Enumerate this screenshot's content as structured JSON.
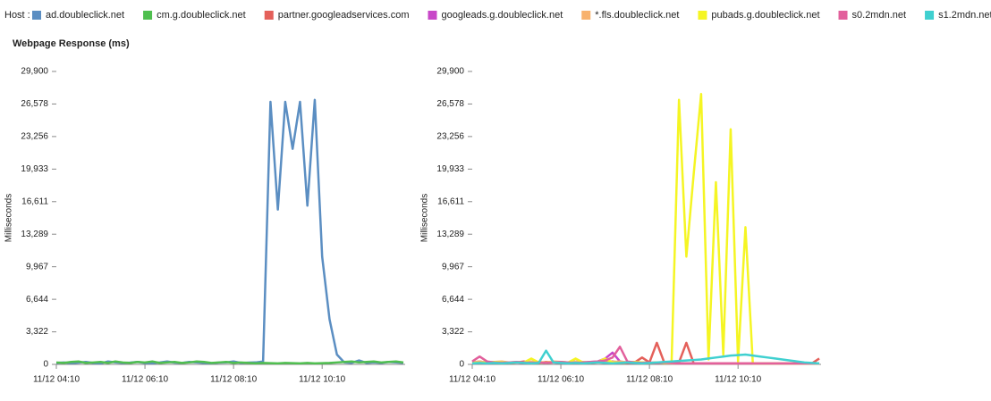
{
  "legend_title": "Host :",
  "chart_data": [
    {
      "type": "line",
      "title": "Webpage Response (ms)",
      "ylabel": "Milliseconds",
      "x": [
        "11/12 04:10",
        "11/12 04:20",
        "11/12 04:30",
        "11/12 04:40",
        "11/12 04:50",
        "11/12 05:00",
        "11/12 05:10",
        "11/12 05:20",
        "11/12 05:30",
        "11/12 05:40",
        "11/12 05:50",
        "11/12 06:00",
        "11/12 06:10",
        "11/12 06:20",
        "11/12 06:30",
        "11/12 06:40",
        "11/12 06:50",
        "11/12 07:00",
        "11/12 07:10",
        "11/12 07:20",
        "11/12 07:30",
        "11/12 07:40",
        "11/12 07:50",
        "11/12 08:00",
        "11/12 08:10",
        "11/12 08:20",
        "11/12 08:30",
        "11/12 08:40",
        "11/12 08:50",
        "11/12 09:00",
        "11/12 09:10",
        "11/12 09:20",
        "11/12 09:30",
        "11/12 09:40",
        "11/12 09:50",
        "11/12 10:00",
        "11/12 10:10",
        "11/12 10:20",
        "11/12 10:30",
        "11/12 10:40",
        "11/12 10:50",
        "11/12 11:00",
        "11/12 11:10",
        "11/12 11:20",
        "11/12 11:30",
        "11/12 11:40",
        "11/12 11:50",
        "11/12 12:00"
      ],
      "xlim": [
        "11/12 04:10",
        "11/12 12:00"
      ],
      "xticks": [
        "11/12 04:10",
        "11/12 06:10",
        "11/12 08:10",
        "11/12 10:10"
      ],
      "ylim": [
        0,
        29900
      ],
      "yticks": [
        0,
        {
          "value": 3322,
          "label": "3,322"
        },
        {
          "value": 6644,
          "label": "6,644"
        },
        {
          "value": 9967,
          "label": "9,967"
        },
        {
          "value": 13289,
          "label": "13,289"
        },
        {
          "value": 16611,
          "label": "16,611"
        },
        {
          "value": 19933,
          "label": "19,933"
        },
        {
          "value": 23256,
          "label": "23,256"
        },
        {
          "value": 26578,
          "label": "26,578"
        },
        {
          "value": 29900,
          "label": "29,900"
        }
      ],
      "grid": false,
      "series": [
        {
          "name": "ad.doubleclick.net",
          "color": "#5b8ec2",
          "values": [
            150,
            200,
            120,
            180,
            250,
            150,
            100,
            300,
            200,
            150,
            180,
            250,
            150,
            120,
            200,
            300,
            180,
            150,
            250,
            200,
            150,
            120,
            180,
            200,
            300,
            150,
            180,
            200,
            300,
            26800,
            15800,
            26800,
            22000,
            26800,
            16200,
            27000,
            11000,
            4600,
            1000,
            200,
            150,
            400,
            150,
            200,
            150,
            250,
            200,
            150
          ]
        },
        {
          "name": "cm.g.doubleclick.net",
          "color": "#4fbf4f",
          "values": [
            200,
            150,
            250,
            300,
            150,
            200,
            250,
            150,
            300,
            200,
            150,
            250,
            200,
            300,
            150,
            200,
            250,
            150,
            200,
            300,
            250,
            150,
            200,
            250,
            150,
            200,
            150,
            100,
            150,
            120,
            100,
            150,
            120,
            100,
            150,
            100,
            120,
            150,
            200,
            250,
            300,
            200,
            250,
            300,
            200,
            250,
            300,
            200
          ]
        }
      ]
    },
    {
      "type": "line",
      "ylabel": "Milliseconds",
      "x": [
        "11/12 04:10",
        "11/12 04:20",
        "11/12 04:30",
        "11/12 04:40",
        "11/12 04:50",
        "11/12 05:00",
        "11/12 05:10",
        "11/12 05:20",
        "11/12 05:30",
        "11/12 05:40",
        "11/12 05:50",
        "11/12 06:00",
        "11/12 06:10",
        "11/12 06:20",
        "11/12 06:30",
        "11/12 06:40",
        "11/12 06:50",
        "11/12 07:00",
        "11/12 07:10",
        "11/12 07:20",
        "11/12 07:30",
        "11/12 07:40",
        "11/12 07:50",
        "11/12 08:00",
        "11/12 08:10",
        "11/12 08:20",
        "11/12 08:30",
        "11/12 08:40",
        "11/12 08:50",
        "11/12 09:00",
        "11/12 09:10",
        "11/12 09:20",
        "11/12 09:30",
        "11/12 09:40",
        "11/12 09:50",
        "11/12 10:00",
        "11/12 10:10",
        "11/12 10:20",
        "11/12 10:30",
        "11/12 10:40",
        "11/12 10:50",
        "11/12 11:00",
        "11/12 11:10",
        "11/12 11:20",
        "11/12 11:30",
        "11/12 11:40",
        "11/12 11:50",
        "11/12 12:00"
      ],
      "xlim": [
        "11/12 04:10",
        "11/12 12:00"
      ],
      "xticks": [
        "11/12 04:10",
        "11/12 06:10",
        "11/12 08:10",
        "11/12 10:10"
      ],
      "ylim": [
        0,
        29900
      ],
      "yticks": [
        0,
        {
          "value": 3322,
          "label": "3,322"
        },
        {
          "value": 6644,
          "label": "6,644"
        },
        {
          "value": 9967,
          "label": "9,967"
        },
        {
          "value": 13289,
          "label": "13,289"
        },
        {
          "value": 16611,
          "label": "16,611"
        },
        {
          "value": 19933,
          "label": "19,933"
        },
        {
          "value": 23256,
          "label": "23,256"
        },
        {
          "value": 26578,
          "label": "26,578"
        },
        {
          "value": 29900,
          "label": "29,900"
        }
      ],
      "grid": false,
      "series": [
        {
          "name": "partner.googleadservices.com",
          "color": "#e4605a",
          "values": [
            200,
            300,
            150,
            200,
            250,
            150,
            200,
            300,
            200,
            150,
            250,
            200,
            150,
            200,
            300,
            200,
            150,
            200,
            250,
            300,
            200,
            150,
            200,
            700,
            200,
            2200,
            200,
            150,
            200,
            2200,
            100,
            100,
            100,
            100,
            100,
            100,
            100,
            100,
            100,
            100,
            100,
            100,
            100,
            100,
            100,
            100,
            100,
            600
          ]
        },
        {
          "name": "googleads.g.doubleclick.net",
          "color": "#c847c8",
          "values": [
            300,
            200,
            150,
            200,
            250,
            150,
            200,
            150,
            200,
            250,
            150,
            200,
            150,
            200,
            150,
            200,
            250,
            300,
            600,
            1200,
            300,
            200,
            150,
            200,
            150,
            200,
            150,
            100,
            100,
            100,
            100,
            100,
            100,
            100,
            100,
            100,
            100,
            100,
            100,
            100,
            100,
            100,
            100,
            100,
            100,
            100,
            100,
            100
          ]
        },
        {
          "name": "*.fls.doubleclick.net",
          "color": "#f8b26e",
          "values": [
            200,
            300,
            200,
            250,
            300,
            200,
            250,
            200,
            300,
            250,
            200,
            300,
            250,
            200,
            300,
            250,
            200,
            300,
            200,
            250,
            300,
            200,
            250,
            200,
            150,
            200,
            150,
            100,
            100,
            100,
            100,
            100,
            100,
            100,
            100,
            100,
            100,
            100,
            100,
            100,
            100,
            100,
            100,
            100,
            100,
            100,
            100,
            100
          ]
        },
        {
          "name": "pubads.g.doubleclick.net",
          "color": "#f5f523",
          "values": [
            200,
            150,
            200,
            250,
            200,
            150,
            200,
            200,
            600,
            200,
            150,
            200,
            250,
            200,
            600,
            200,
            150,
            250,
            600,
            200,
            150,
            200,
            250,
            200,
            150,
            200,
            150,
            200,
            27000,
            11000,
            19500,
            27600,
            500,
            18600,
            1000,
            24000,
            300,
            14000,
            100,
            100,
            100,
            100,
            100,
            100,
            100,
            100,
            100,
            100
          ]
        },
        {
          "name": "s0.2mdn.net",
          "color": "#e2609c",
          "values": [
            300,
            800,
            300,
            200,
            150,
            200,
            250,
            200,
            150,
            200,
            150,
            200,
            250,
            200,
            150,
            200,
            250,
            300,
            400,
            700,
            1800,
            300,
            200,
            150,
            200,
            150,
            200,
            150,
            100,
            100,
            100,
            100,
            100,
            100,
            100,
            100,
            100,
            100,
            100,
            100,
            100,
            100,
            100,
            100,
            100,
            100,
            100,
            100
          ]
        },
        {
          "name": "s1.2mdn.net",
          "color": "#3fd0d0",
          "values": [
            100,
            150,
            100,
            150,
            100,
            150,
            200,
            150,
            100,
            150,
            1400,
            200,
            150,
            100,
            150,
            100,
            150,
            200,
            150,
            100,
            150,
            200,
            150,
            100,
            150,
            200,
            250,
            300,
            350,
            400,
            450,
            500,
            600,
            700,
            800,
            900,
            950,
            1000,
            900,
            800,
            700,
            600,
            500,
            400,
            300,
            200,
            150,
            100
          ]
        }
      ]
    }
  ]
}
